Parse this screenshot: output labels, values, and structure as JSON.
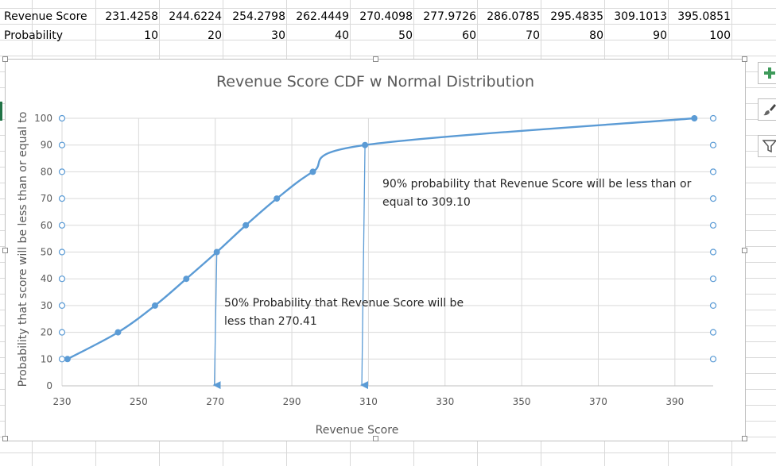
{
  "spreadsheet": {
    "rows": [
      {
        "header": "Revenue Score",
        "cells": [
          "231.4258",
          "244.6224",
          "254.2798",
          "262.4449",
          "270.4098",
          "277.9726",
          "286.0785",
          "295.4835",
          "309.1013",
          "395.0851"
        ]
      },
      {
        "header": "Probability",
        "cells": [
          "10",
          "20",
          "30",
          "40",
          "50",
          "60",
          "70",
          "80",
          "90",
          "100"
        ]
      }
    ]
  },
  "chart_data": {
    "type": "scatter",
    "title": "Revenue Score CDF w Normal Distribution",
    "xlabel": "Revenue Score",
    "ylabel": "Probability that score will be less than or equal to",
    "xlim": [
      230,
      400
    ],
    "ylim": [
      0,
      100
    ],
    "x_ticks": [
      230,
      250,
      270,
      290,
      310,
      330,
      350,
      370,
      390
    ],
    "y_ticks": [
      0,
      10,
      20,
      30,
      40,
      50,
      60,
      70,
      80,
      90,
      100
    ],
    "grid": true,
    "series": [
      {
        "name": "CDF",
        "color": "#5b9bd5",
        "x": [
          231.4258,
          244.6224,
          254.2798,
          262.4449,
          270.4098,
          277.9726,
          286.0785,
          295.4835,
          309.1013,
          395.0851
        ],
        "y": [
          10,
          20,
          30,
          40,
          50,
          60,
          70,
          80,
          90,
          100
        ]
      }
    ],
    "annotations": [
      {
        "id": "a50",
        "lines": [
          "50% Probability that Revenue Score will be",
          "less than 270.41"
        ],
        "x": 270.41,
        "y": 50
      },
      {
        "id": "a90",
        "lines": [
          "90% probability that Revenue Score will be less than or",
          "equal to 309.10"
        ],
        "x": 309.1,
        "y": 90
      }
    ]
  },
  "toolbar": {
    "add_element_icon": "plus-icon",
    "style_icon": "paintbrush-icon",
    "filter_icon": "filter-icon"
  }
}
